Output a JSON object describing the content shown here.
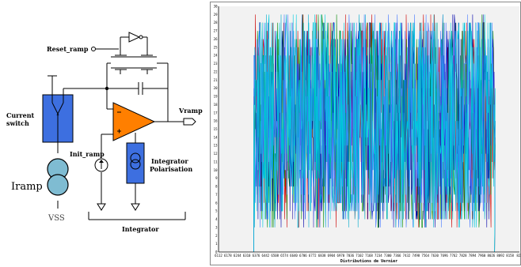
{
  "schematic": {
    "labels": {
      "reset_ramp": "Reset_ramp",
      "current_switch_l1": "Current",
      "current_switch_l2": "switch",
      "vramp": "Vramp",
      "init_ramp": "Init_ramp",
      "integrator_pol_l1": "Integrator",
      "integrator_pol_l2": "Polarisation",
      "iramp": "Iramp",
      "vss": "VSS",
      "integrator": "Integrator"
    },
    "colors": {
      "switch_box": "#3d6fe0",
      "opamp": "#ff7f00",
      "integrator_box": "#3d6fe0",
      "iramp_source": "#7fbcd2"
    }
  },
  "chart_data": {
    "type": "line",
    "xlabel": "Distributions de Vernier",
    "ylabel": "",
    "x_tick_labels": [
      "6112",
      "6178",
      "6244",
      "6310",
      "6376",
      "6442",
      "6508",
      "6574",
      "6640",
      "6706",
      "6772",
      "6838",
      "6904",
      "6970",
      "7036",
      "7102",
      "7168",
      "7234",
      "7300",
      "7366",
      "7432",
      "7498",
      "7564",
      "7630",
      "7696",
      "7762",
      "7828",
      "7894",
      "7960",
      "8026",
      "8092",
      "8158",
      "822"
    ],
    "ylim": [
      0,
      30
    ],
    "y_ticks": [
      0,
      1,
      2,
      3,
      4,
      5,
      6,
      7,
      8,
      9,
      10,
      11,
      12,
      13,
      14,
      15,
      16,
      17,
      18,
      19,
      20,
      21,
      22,
      23,
      24,
      25,
      26,
      27,
      28,
      29,
      30
    ],
    "data_x_range": [
      6360,
      8050
    ],
    "series_colors": [
      "#cc0000",
      "#008800",
      "#0000aa",
      "#00aacc",
      "#4477ff",
      "#00ccdd"
    ],
    "grid": false,
    "background": "#f2f2f2"
  }
}
